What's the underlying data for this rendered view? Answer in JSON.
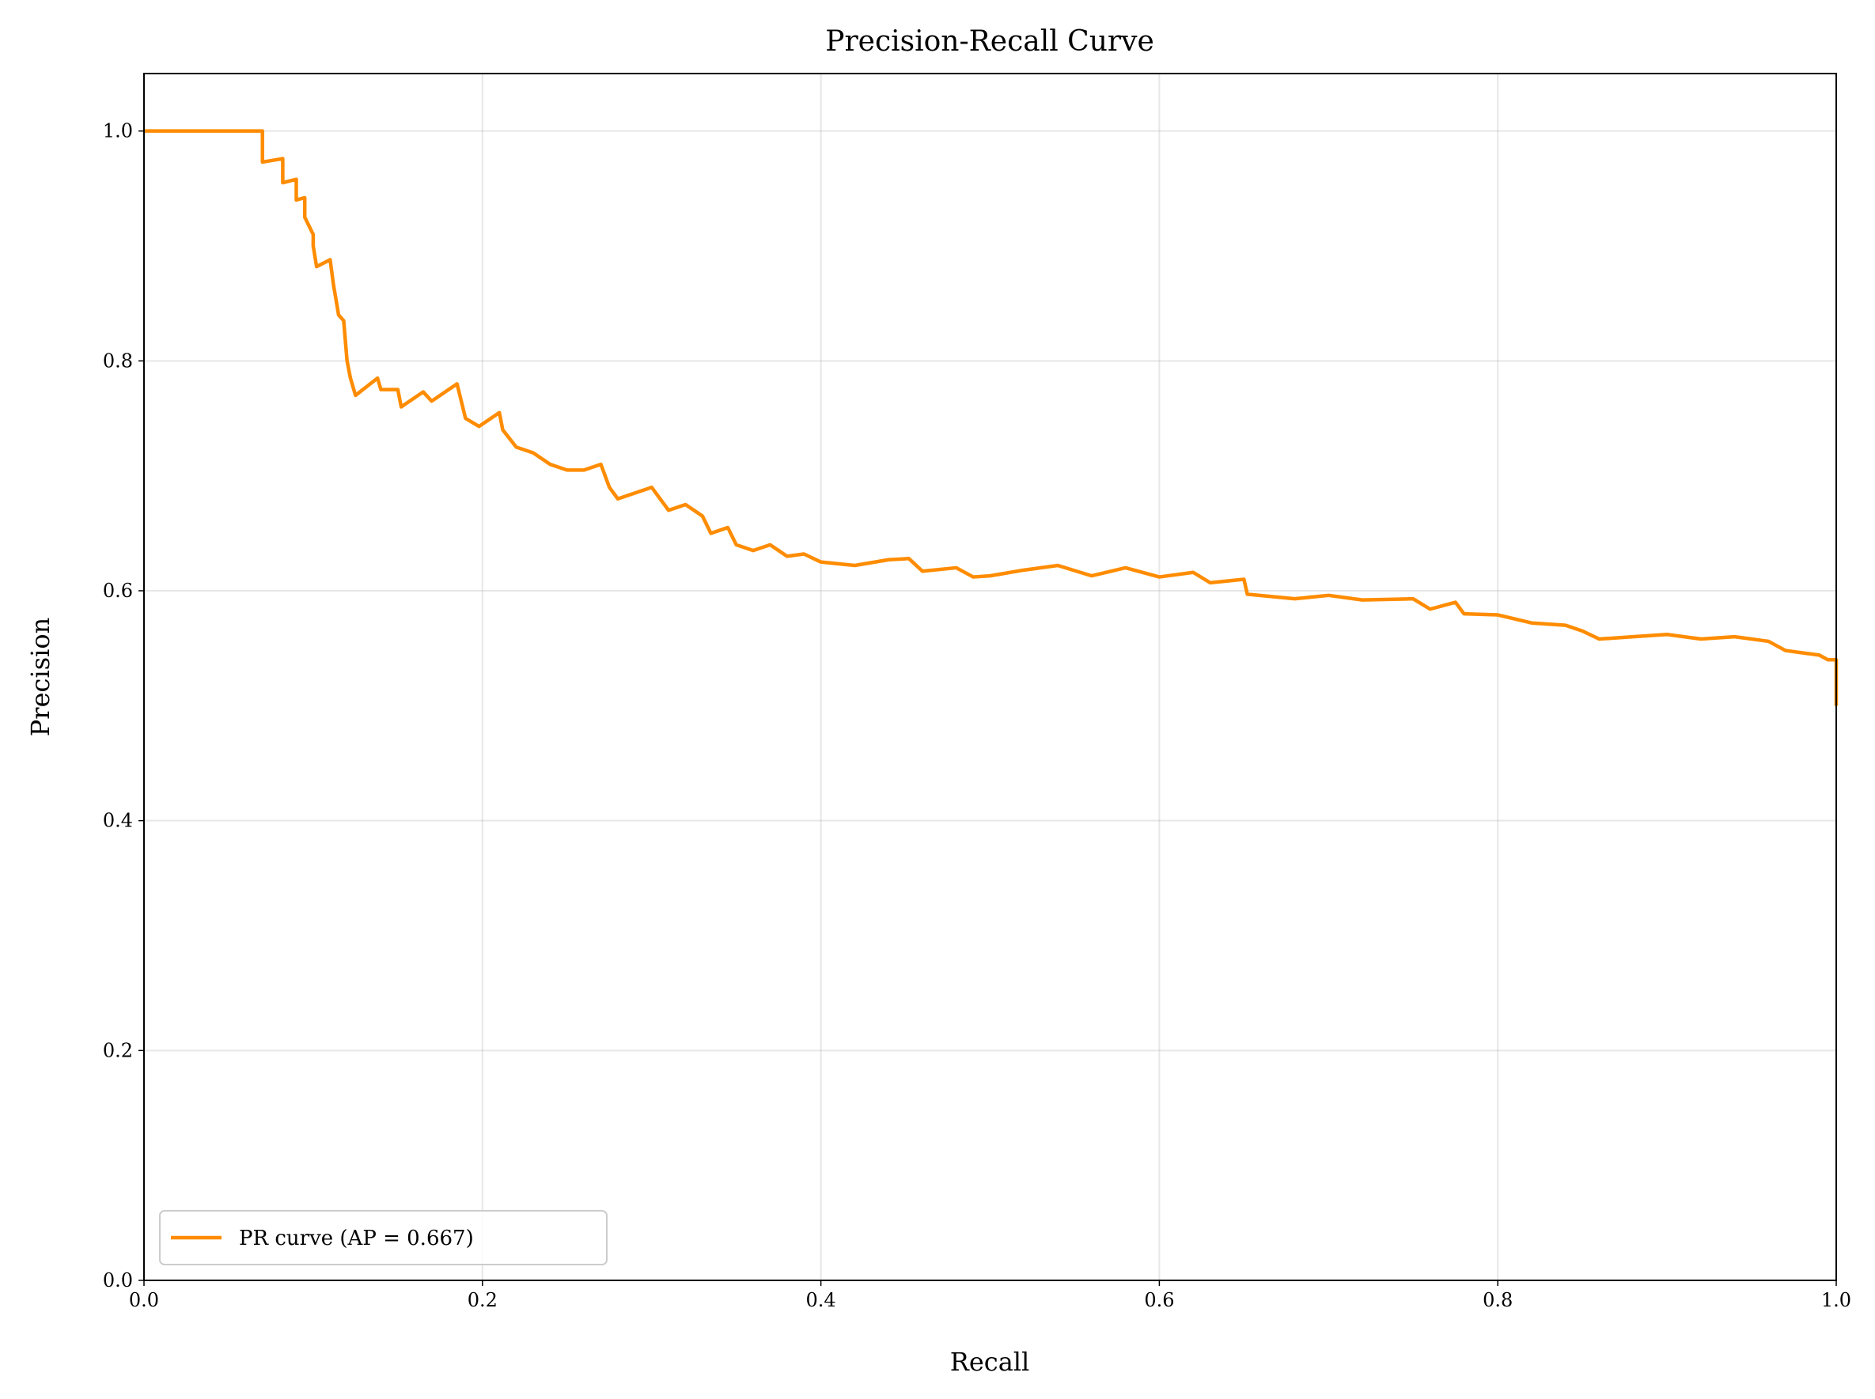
{
  "chart_data": {
    "type": "line",
    "title": "Precision-Recall Curve",
    "xlabel": "Recall",
    "ylabel": "Precision",
    "xlim": [
      0,
      1
    ],
    "ylim": [
      0,
      1.05
    ],
    "xticks": [
      {
        "value": 0,
        "label": "0.0"
      },
      0.2,
      0.4,
      0.6,
      0.8,
      {
        "value": 1,
        "label": "1.0"
      }
    ],
    "yticks": [
      {
        "value": 0,
        "label": "0.0"
      },
      0.2,
      0.4,
      0.6,
      0.8,
      {
        "value": 1,
        "label": "1.0"
      }
    ],
    "grid": true,
    "legend": "lower left",
    "x": [
      0,
      0.07,
      0.07,
      0.082,
      0.082,
      0.09,
      0.09,
      0.095,
      0.095,
      0.1,
      0.1,
      0.102,
      0.11,
      0.112,
      0.115,
      0.118,
      0.12,
      0.122,
      0.125,
      0.138,
      0.14,
      0.15,
      0.152,
      0.165,
      0.17,
      0.18,
      0.185,
      0.19,
      0.198,
      0.21,
      0.212,
      0.22,
      0.23,
      0.24,
      0.25,
      0.26,
      0.27,
      0.275,
      0.28,
      0.3,
      0.31,
      0.32,
      0.33,
      0.335,
      0.345,
      0.35,
      0.36,
      0.37,
      0.38,
      0.39,
      0.4,
      0.42,
      0.44,
      0.452,
      0.46,
      0.48,
      0.49,
      0.5,
      0.52,
      0.54,
      0.56,
      0.58,
      0.6,
      0.62,
      0.63,
      0.65,
      0.652,
      0.68,
      0.7,
      0.72,
      0.75,
      0.76,
      0.775,
      0.78,
      0.8,
      0.82,
      0.84,
      0.85,
      0.86,
      0.88,
      0.9,
      0.92,
      0.94,
      0.96,
      0.97,
      0.99,
      0.995,
      1.0,
      1.0
    ],
    "series": [
      {
        "name": "PR curve (AP = 0.667)",
        "color": "#ff8c00",
        "values": [
          1.0,
          1.0,
          0.973,
          0.976,
          0.955,
          0.958,
          0.94,
          0.942,
          0.925,
          0.91,
          0.9,
          0.882,
          0.888,
          0.866,
          0.84,
          0.835,
          0.8,
          0.785,
          0.77,
          0.785,
          0.775,
          0.775,
          0.76,
          0.773,
          0.765,
          0.775,
          0.78,
          0.75,
          0.743,
          0.755,
          0.74,
          0.725,
          0.72,
          0.71,
          0.705,
          0.705,
          0.71,
          0.69,
          0.68,
          0.69,
          0.67,
          0.675,
          0.665,
          0.65,
          0.655,
          0.64,
          0.635,
          0.64,
          0.63,
          0.632,
          0.625,
          0.622,
          0.627,
          0.628,
          0.617,
          0.62,
          0.612,
          0.613,
          0.618,
          0.622,
          0.613,
          0.62,
          0.612,
          0.616,
          0.607,
          0.61,
          0.597,
          0.593,
          0.596,
          0.592,
          0.593,
          0.584,
          0.59,
          0.58,
          0.579,
          0.572,
          0.57,
          0.565,
          0.558,
          0.56,
          0.562,
          0.558,
          0.56,
          0.556,
          0.548,
          0.544,
          0.54,
          0.54,
          0.5
        ]
      }
    ]
  }
}
